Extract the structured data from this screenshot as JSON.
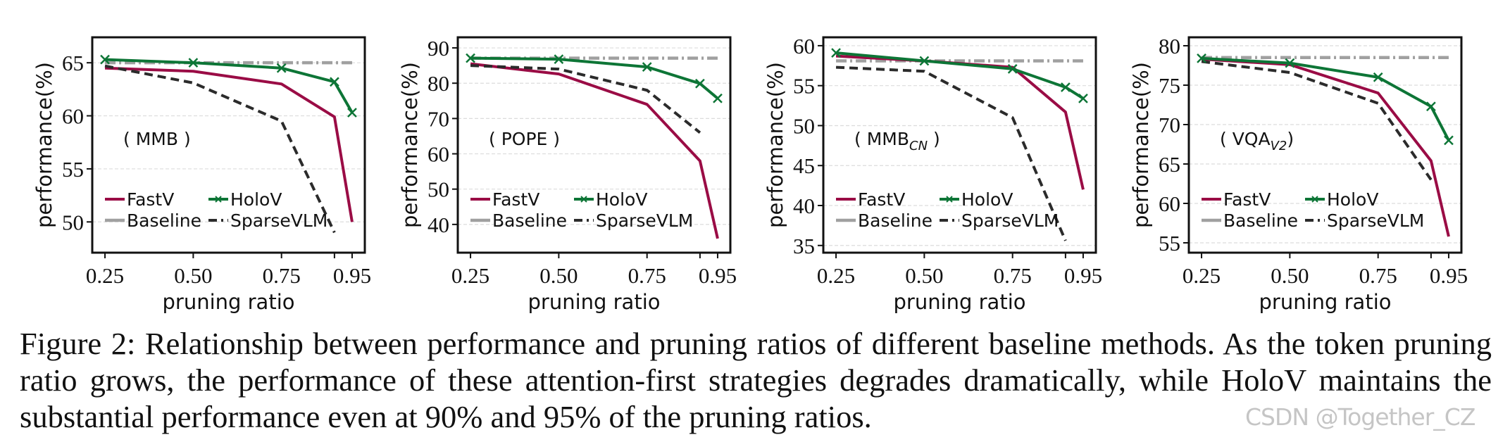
{
  "colors": {
    "FastV": "#9a0c45",
    "HoloV": "#0d7536",
    "Baseline": "#a0a0a0",
    "SparseVLM": "#2b2b2b"
  },
  "legend": {
    "placement": "lower-left",
    "entries": [
      "FastV",
      "HoloV",
      "Baseline",
      "SparseVLM"
    ]
  },
  "chart_data": [
    {
      "type": "line",
      "label": "( MMB )",
      "label_main": "MMB",
      "label_sub": "",
      "xlabel": "pruning ratio",
      "ylabel": "performance(%)",
      "x": [
        0.25,
        0.5,
        0.75,
        0.9,
        0.95
      ],
      "xticks": [
        0.25,
        0.5,
        0.75,
        0.9,
        0.95
      ],
      "xticklabels": [
        "0.25",
        "0.50",
        "0.75",
        "",
        "0.95"
      ],
      "xlim": [
        0.214,
        0.986
      ],
      "ylim": [
        47.1,
        67.4
      ],
      "yticks": [
        50,
        55,
        60,
        65
      ],
      "grid": true,
      "series": [
        {
          "name": "FastV",
          "values": [
            64.5,
            64.2,
            63.0,
            59.9,
            50.0
          ]
        },
        {
          "name": "HoloV",
          "values": [
            65.3,
            65.0,
            64.5,
            63.2,
            60.3
          ]
        },
        {
          "name": "Baseline",
          "values": [
            65.0,
            65.0,
            65.0,
            65.0,
            65.0
          ]
        },
        {
          "name": "SparseVLM",
          "values": [
            64.7,
            63.1,
            59.5,
            49.0,
            null
          ]
        }
      ]
    },
    {
      "type": "line",
      "label": "( POPE )",
      "label_main": "POPE",
      "label_sub": "",
      "xlabel": "pruning ratio",
      "ylabel": "performance(%)",
      "x": [
        0.25,
        0.5,
        0.75,
        0.9,
        0.95
      ],
      "xticks": [
        0.25,
        0.5,
        0.75,
        0.9,
        0.95
      ],
      "xticklabels": [
        "0.25",
        "0.50",
        "0.75",
        "",
        "0.95"
      ],
      "xlim": [
        0.214,
        0.986
      ],
      "ylim": [
        32,
        93
      ],
      "yticks": [
        40,
        50,
        60,
        70,
        80,
        90
      ],
      "grid": true,
      "series": [
        {
          "name": "FastV",
          "values": [
            85.5,
            82.6,
            74.0,
            58.0,
            36.0
          ]
        },
        {
          "name": "HoloV",
          "values": [
            87.1,
            86.8,
            84.6,
            79.9,
            75.7
          ]
        },
        {
          "name": "Baseline",
          "values": [
            87.1,
            87.1,
            87.1,
            87.1,
            87.1
          ]
        },
        {
          "name": "SparseVLM",
          "values": [
            85.0,
            84.0,
            78.0,
            66.0,
            null
          ]
        }
      ]
    },
    {
      "type": "line",
      "label": "( MMBCN )",
      "label_main": "MMB",
      "label_sub": "CN",
      "xlabel": "pruning ratio",
      "ylabel": "performance(%)",
      "x": [
        0.25,
        0.5,
        0.75,
        0.9,
        0.95
      ],
      "xticks": [
        0.25,
        0.5,
        0.75,
        0.9,
        0.95
      ],
      "xticklabels": [
        "0.25",
        "0.50",
        "0.75",
        "",
        "0.95"
      ],
      "xlim": [
        0.214,
        0.986
      ],
      "ylim": [
        34.1,
        61.05
      ],
      "yticks": [
        35,
        40,
        45,
        50,
        55,
        60
      ],
      "grid": true,
      "series": [
        {
          "name": "FastV",
          "values": [
            58.7,
            58.1,
            57.3,
            51.7,
            42.0
          ]
        },
        {
          "name": "HoloV",
          "values": [
            59.1,
            58.1,
            57.1,
            54.8,
            53.4
          ]
        },
        {
          "name": "Baseline",
          "values": [
            58.1,
            58.1,
            58.1,
            58.1,
            58.1
          ]
        },
        {
          "name": "SparseVLM",
          "values": [
            57.3,
            56.8,
            51.0,
            35.6,
            null
          ]
        }
      ]
    },
    {
      "type": "line",
      "label": "( VQAV2)",
      "label_main": "VQA",
      "label_sub": "V2",
      "xlabel": "pruning ratio",
      "ylabel": "performance(%)",
      "x": [
        0.25,
        0.5,
        0.75,
        0.9,
        0.95
      ],
      "xticks": [
        0.25,
        0.5,
        0.75,
        0.9,
        0.95
      ],
      "xticklabels": [
        "0.25",
        "0.50",
        "0.75",
        "",
        "0.95"
      ],
      "xlim": [
        0.214,
        0.986
      ],
      "ylim": [
        53.75,
        81.07
      ],
      "yticks": [
        55,
        60,
        65,
        70,
        75,
        80
      ],
      "grid": true,
      "series": [
        {
          "name": "FastV",
          "values": [
            78.3,
            77.6,
            74.0,
            65.4,
            55.8
          ]
        },
        {
          "name": "HoloV",
          "values": [
            78.4,
            77.8,
            76.0,
            72.3,
            68.0
          ]
        },
        {
          "name": "Baseline",
          "values": [
            78.5,
            78.5,
            78.5,
            78.5,
            78.5
          ]
        },
        {
          "name": "SparseVLM",
          "values": [
            78.0,
            76.6,
            72.7,
            63.0,
            null
          ]
        }
      ]
    }
  ],
  "caption": "Figure 2: Relationship between performance and pruning ratios of different baseline methods. As the token pruning ratio grows, the performance of these attention-first strategies degrades dramatically, while HoloV maintains the substantial performance even at 90% and 95% of the pruning ratios.",
  "watermark": "CSDN @Together_CZ"
}
